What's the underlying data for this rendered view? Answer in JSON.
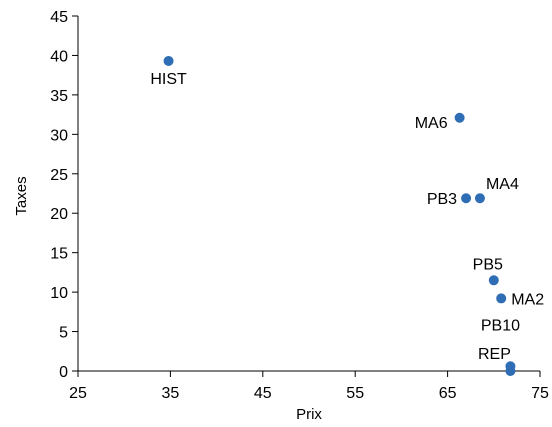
{
  "chart_data": {
    "type": "scatter",
    "title": "",
    "xlabel": "Prix",
    "ylabel": "Taxes",
    "xlim": [
      25,
      75
    ],
    "ylim": [
      0,
      45
    ],
    "xticks": [
      25,
      35,
      45,
      55,
      65,
      75
    ],
    "yticks": [
      0,
      5,
      10,
      15,
      20,
      25,
      30,
      35,
      40,
      45
    ],
    "grid": false,
    "legend": "none",
    "marker_color": "#2f6db5",
    "points": [
      {
        "label": "HIST",
        "x": 34.8,
        "y": 39.3
      },
      {
        "label": "MA6",
        "x": 66.3,
        "y": 32.1
      },
      {
        "label": "PB3",
        "x": 67.0,
        "y": 21.9
      },
      {
        "label": "MA4",
        "x": 68.5,
        "y": 21.9
      },
      {
        "label": "PB5",
        "x": 70.0,
        "y": 11.5
      },
      {
        "label": "MA2",
        "x": 70.8,
        "y": 9.2
      },
      {
        "label": "PB10",
        "x": 71.8,
        "y": 0.6
      },
      {
        "label": "REP",
        "x": 71.8,
        "y": 0.0
      }
    ]
  }
}
